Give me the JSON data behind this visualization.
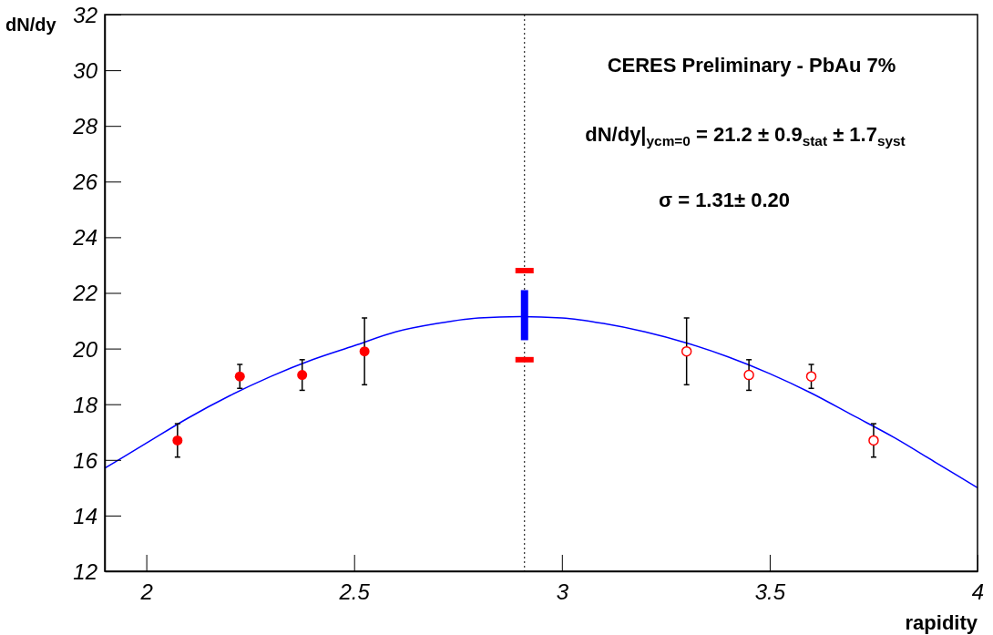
{
  "chart_data": {
    "type": "scatter",
    "xlabel": "rapidity",
    "ylabel": "dN/dy",
    "xlim": [
      1.9,
      4.0
    ],
    "xticks": [
      2,
      2.5,
      3,
      3.5,
      4
    ],
    "ylim": [
      12,
      32
    ],
    "yticks": [
      12,
      14,
      16,
      18,
      20,
      22,
      24,
      26,
      28,
      30,
      32
    ],
    "marker": "circle",
    "annotations": [
      "CERES Preliminary - PbAu 7%",
      "dN/dy|$_{ycm=0}$ = 21.2 ± 0.9$_{stat}$ ± 1.7$_{syst}$",
      "σ = 1.31± 0.20"
    ],
    "ref_lines": [
      {
        "axis": "x",
        "value": 2.91,
        "color": "#000000",
        "line_style": "dotted"
      }
    ],
    "series": [
      {
        "color": "#ff0000",
        "x": [
          2.075,
          2.225,
          2.375,
          2.525
        ],
        "values": [
          16.7,
          19.0,
          19.05,
          19.9
        ],
        "errors": [
          0.6,
          0.43,
          0.55,
          1.2
        ]
      },
      {
        "color": "#ff0000",
        "marker": "open_circle",
        "x": [
          3.3,
          3.45,
          3.6,
          3.75
        ],
        "values": [
          19.9,
          19.05,
          19.0,
          16.7
        ],
        "errors": [
          1.2,
          0.55,
          0.43,
          0.6
        ]
      },
      {
        "color": "#ff0000",
        "marker": "square",
        "x": [
          2.91,
          2.91
        ],
        "values": [
          22.8,
          19.6
        ]
      },
      {
        "type": "bar",
        "color": "#0000ff",
        "x": [
          2.91
        ],
        "base": [
          20.3
        ],
        "values": [
          1.8
        ]
      },
      {
        "type": "line",
        "color": "#0000ff",
        "marker": "none",
        "x": [
          1.9,
          2.0,
          2.1,
          2.2,
          2.3,
          2.4,
          2.5,
          2.6,
          2.7,
          2.8,
          2.9,
          3.0,
          3.1,
          3.2,
          3.3,
          3.4,
          3.5,
          3.6,
          3.7,
          3.8,
          3.9,
          4.0
        ],
        "values": [
          15.7,
          16.6,
          17.5,
          18.3,
          19.0,
          19.6,
          20.1,
          20.6,
          20.9,
          21.1,
          21.15,
          21.1,
          20.9,
          20.6,
          20.2,
          19.7,
          19.1,
          18.4,
          17.6,
          16.8,
          15.9,
          15.0
        ]
      }
    ]
  }
}
